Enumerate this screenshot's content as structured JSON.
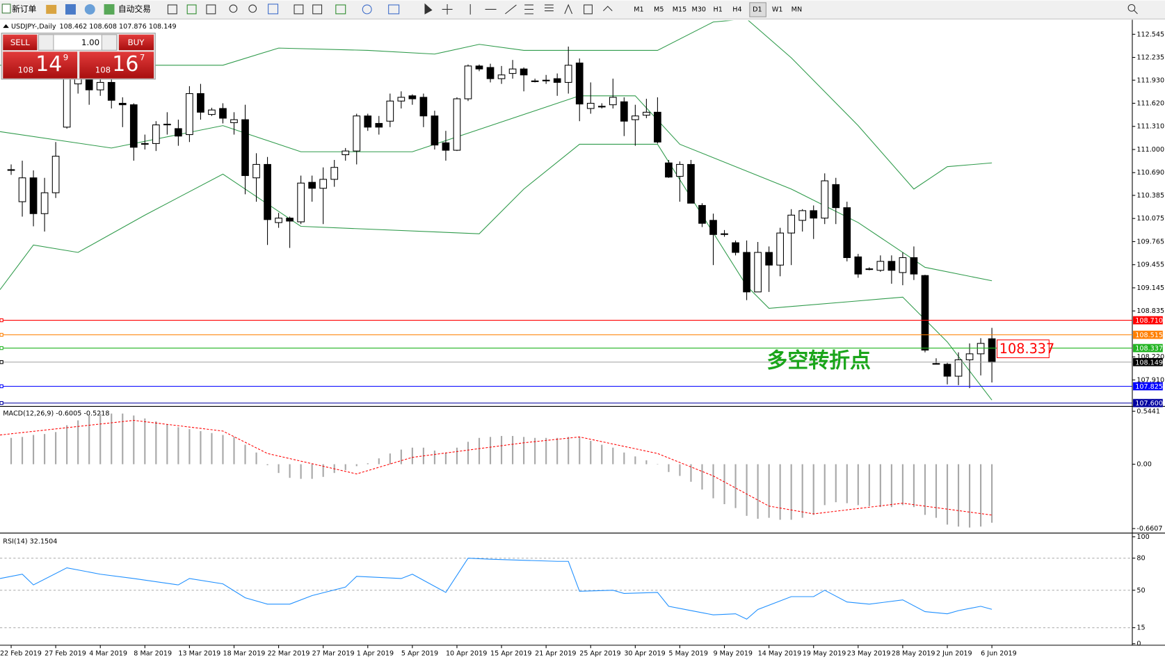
{
  "toolbar": {
    "new_order": "新订单",
    "auto_trading": "自动交易",
    "timeframes": [
      "M1",
      "M5",
      "M15",
      "M30",
      "H1",
      "H4",
      "D1",
      "W1",
      "MN"
    ],
    "active_timeframe": "D1"
  },
  "trade_panel": {
    "sell": "SELL",
    "lots": "1.00",
    "buy": "BUY",
    "sell_big": "108",
    "sell_pips": "14",
    "sell_frac": "9",
    "buy_big": "108",
    "buy_pips": "16",
    "buy_frac": "7"
  },
  "chart_data": [
    {
      "type": "candlestick",
      "title": "USDJPY-,Daily",
      "subtitle": "108.462 108.608 107.876 108.149",
      "date_labels": [
        "22 Feb 2019",
        "27 Feb 2019",
        "4 Mar 2019",
        "8 Mar 2019",
        "13 Mar 2019",
        "18 Mar 2019",
        "22 Mar 2019",
        "27 Mar 2019",
        "1 Apr 2019",
        "5 Apr 2019",
        "10 Apr 2019",
        "15 Apr 2019",
        "21 Apr 2019",
        "25 Apr 2019",
        "30 Apr 2019",
        "5 May 2019",
        "9 May 2019",
        "14 May 2019",
        "19 May 2019",
        "23 May 2019",
        "28 May 2019",
        "2 Jun 2019",
        "6 Jun 2019"
      ],
      "open": [
        110.73,
        110.3,
        110.62,
        110.14,
        110.42,
        111.3,
        111.88,
        111.98,
        111.8,
        111.9,
        111.62,
        111.6,
        111.08,
        111.08,
        111.34,
        111.28,
        111.2,
        111.75,
        111.47,
        111.55,
        111.36,
        111.4,
        110.62,
        110.8,
        110.02,
        110.08,
        110.03,
        110.56,
        110.48,
        110.6,
        110.93,
        110.98,
        111.45,
        111.35,
        111.38,
        111.65,
        111.72,
        111.7,
        111.45,
        111.09,
        110.99,
        111.68,
        112.12,
        112.1,
        111.95,
        112.02,
        112.08,
        111.92,
        111.93,
        111.95,
        111.9,
        112.16,
        111.55,
        111.58,
        111.6,
        111.64,
        111.4,
        111.46,
        111.5,
        110.82,
        110.64,
        110.8,
        110.25,
        110.05,
        109.87,
        109.75,
        109.62,
        109.09,
        109.62,
        109.45,
        109.88,
        110.05,
        110.18,
        110.08,
        110.53,
        110.22,
        109.56,
        109.4,
        109.38,
        109.5,
        109.35,
        109.55,
        109.31,
        108.13,
        108.12,
        107.96,
        108.18,
        108.26,
        108.462
      ],
      "high": [
        110.8,
        110.85,
        110.72,
        110.62,
        111.1,
        112.2,
        112.0,
        112.05,
        111.98,
        111.95,
        111.7,
        111.62,
        111.2,
        111.38,
        111.5,
        111.4,
        111.85,
        111.88,
        111.56,
        111.62,
        111.5,
        111.6,
        110.95,
        110.9,
        110.15,
        110.1,
        110.65,
        110.65,
        110.76,
        110.86,
        111.02,
        111.48,
        111.48,
        111.45,
        111.75,
        111.78,
        111.74,
        111.75,
        111.52,
        111.25,
        111.7,
        112.14,
        112.14,
        112.15,
        112.12,
        112.2,
        112.1,
        111.95,
        112.0,
        112.02,
        112.38,
        112.22,
        111.9,
        111.62,
        111.95,
        111.7,
        111.6,
        111.68,
        111.7,
        110.86,
        110.84,
        110.86,
        110.28,
        110.14,
        109.92,
        109.78,
        109.78,
        109.76,
        109.7,
        109.95,
        110.2,
        110.2,
        110.25,
        110.68,
        110.62,
        110.3,
        109.6,
        109.42,
        109.58,
        109.58,
        109.62,
        109.7,
        109.32,
        108.2,
        108.14,
        108.28,
        108.4,
        108.47,
        108.608
      ],
      "low": [
        110.66,
        110.1,
        109.97,
        109.9,
        110.35,
        111.28,
        111.75,
        111.6,
        111.72,
        111.55,
        111.3,
        110.85,
        111.0,
        110.98,
        111.2,
        111.05,
        111.1,
        111.4,
        111.45,
        111.35,
        111.2,
        110.4,
        110.3,
        109.72,
        109.95,
        109.68,
        110.0,
        110.3,
        110.0,
        110.5,
        110.85,
        110.8,
        111.25,
        111.2,
        111.3,
        111.55,
        111.6,
        111.3,
        111.0,
        110.85,
        110.98,
        111.65,
        112.05,
        111.9,
        111.88,
        111.95,
        111.78,
        111.9,
        111.88,
        111.72,
        111.75,
        111.38,
        111.48,
        111.55,
        111.55,
        111.18,
        111.05,
        111.42,
        111.08,
        110.62,
        110.3,
        110.28,
        109.96,
        109.45,
        109.83,
        109.58,
        108.98,
        109.09,
        109.09,
        109.3,
        109.45,
        109.9,
        109.8,
        110.0,
        110.0,
        109.5,
        109.28,
        109.38,
        109.36,
        109.2,
        109.18,
        109.25,
        108.28,
        108.12,
        107.85,
        107.84,
        107.8,
        107.97,
        107.876
      ],
      "close": [
        110.73,
        110.62,
        110.14,
        110.42,
        110.91,
        111.98,
        111.98,
        111.8,
        111.9,
        111.66,
        111.6,
        111.03,
        111.08,
        111.33,
        111.34,
        111.18,
        111.75,
        111.5,
        111.53,
        111.42,
        111.4,
        110.65,
        110.8,
        110.06,
        110.08,
        110.04,
        110.55,
        110.48,
        110.6,
        110.76,
        110.98,
        111.45,
        111.3,
        111.3,
        111.65,
        111.7,
        111.68,
        111.45,
        111.06,
        110.99,
        111.68,
        112.12,
        112.08,
        111.95,
        112.0,
        112.08,
        112.0,
        111.92,
        111.93,
        111.9,
        112.13,
        111.61,
        111.62,
        111.58,
        111.7,
        111.38,
        111.45,
        111.5,
        111.1,
        110.63,
        110.8,
        110.28,
        110.01,
        109.86,
        109.87,
        109.62,
        109.09,
        109.62,
        109.45,
        109.88,
        110.12,
        110.18,
        110.08,
        110.58,
        110.22,
        109.55,
        109.33,
        109.4,
        109.5,
        109.38,
        109.55,
        109.33,
        108.31,
        108.13,
        107.96,
        108.18,
        108.26,
        108.4,
        108.149
      ],
      "up_color": "#ffffff",
      "down_color": "#000000",
      "bands": [
        {
          "x": [
            -1,
            19,
            24,
            32,
            38,
            42,
            46,
            58,
            63,
            66,
            70,
            76,
            81,
            84,
            88
          ],
          "values": [
            112.13,
            112.13,
            112.36,
            112.33,
            112.28,
            112.41,
            112.33,
            112.33,
            112.71,
            112.75,
            112.23,
            111.32,
            110.47,
            110.77,
            110.82
          ]
        },
        {
          "x": [
            -1,
            9,
            19,
            26,
            36,
            42,
            51,
            56,
            60,
            70,
            76,
            82,
            88
          ],
          "values": [
            111.24,
            111.02,
            111.32,
            110.97,
            110.97,
            111.27,
            111.72,
            111.72,
            111.07,
            110.47,
            110.02,
            109.42,
            109.24
          ]
        },
        {
          "x": [
            -1,
            2,
            6,
            12,
            19,
            26,
            42,
            46,
            51,
            58,
            66,
            68,
            76,
            80,
            84,
            88
          ],
          "values": [
            109.12,
            109.72,
            109.62,
            110.12,
            110.67,
            109.97,
            109.87,
            110.47,
            111.07,
            111.07,
            109.17,
            108.87,
            108.97,
            109.02,
            108.42,
            107.64
          ]
        }
      ],
      "band_color": "#2e9a4a",
      "ylim": [
        107.56,
        112.73
      ],
      "yticks": [
        112.545,
        112.235,
        {
          "value": 111.93,
          "label": "111.930"
        },
        {
          "value": 111.62,
          "label": "111.620"
        },
        {
          "value": 111.31,
          "label": "111.310"
        },
        {
          "value": 111,
          "label": "111.000"
        },
        {
          "value": 110.69,
          "label": "110.690"
        },
        110.385,
        110.075,
        109.765,
        109.455,
        109.145,
        108.835,
        {
          "value": 108.22,
          "label": "108.220"
        },
        {
          "value": 107.91,
          "label": "107.910"
        }
      ],
      "levels": [
        {
          "value": 108.71,
          "label": "108.710",
          "color": "#ff0000"
        },
        {
          "value": 108.515,
          "label": "108.515",
          "color": "#ff7f00"
        },
        {
          "value": 108.337,
          "label": "108.337",
          "color": "#22b422"
        },
        {
          "value": 108.149,
          "label": "108.149",
          "color": "#000000"
        },
        {
          "value": 107.825,
          "label": "107.825",
          "color": "#0000ff"
        },
        {
          "value": 107.6,
          "label": "107.600",
          "color": "#0000a0"
        }
      ],
      "annotations": [
        {
          "text": "多空转折点",
          "color": "#1aa51a"
        },
        {
          "text": "108.337",
          "color": "#ff0000"
        }
      ]
    },
    {
      "type": "bar",
      "title": "MACD(12,26,9) -0.6005 -0.5218",
      "color": "#a8a8a8",
      "values": [
        0.27,
        0.28,
        0.3,
        0.31,
        0.33,
        0.4,
        0.45,
        0.5,
        0.52,
        0.52,
        0.52,
        0.5,
        0.47,
        0.44,
        0.41,
        0.38,
        0.36,
        0.34,
        0.32,
        0.3,
        0.28,
        0.2,
        0.12,
        -0.01,
        -0.09,
        -0.14,
        -0.15,
        -0.15,
        -0.13,
        -0.09,
        -0.06,
        -0.02,
        0.01,
        0.06,
        0.11,
        0.15,
        0.17,
        0.17,
        0.14,
        0.12,
        0.17,
        0.23,
        0.27,
        0.28,
        0.29,
        0.29,
        0.28,
        0.27,
        0.27,
        0.27,
        0.28,
        0.28,
        0.24,
        0.2,
        0.17,
        0.12,
        0.08,
        0.04,
        0.0,
        -0.08,
        -0.12,
        -0.18,
        -0.26,
        -0.35,
        -0.41,
        -0.45,
        -0.53,
        -0.56,
        -0.55,
        -0.57,
        -0.57,
        -0.55,
        -0.52,
        -0.42,
        -0.39,
        -0.4,
        -0.42,
        -0.43,
        -0.44,
        -0.44,
        -0.42,
        -0.44,
        -0.52,
        -0.55,
        -0.62,
        -0.64,
        -0.65,
        -0.64,
        -0.6005
      ],
      "signal": {
        "x": [
          -1,
          11,
          19,
          23,
          31,
          36,
          46,
          51,
          58,
          63,
          68,
          72,
          80,
          88
        ],
        "values": [
          0.3,
          0.45,
          0.34,
          0.11,
          -0.1,
          0.07,
          0.22,
          0.28,
          0.11,
          -0.12,
          -0.43,
          -0.51,
          -0.4,
          -0.5218
        ],
        "color": "#ff0000"
      },
      "ylim": [
        -0.699,
        0.582
      ],
      "yticks": [
        0.5441,
        {
          "value": 0,
          "label": "0.00"
        },
        -0.6607
      ]
    },
    {
      "type": "line",
      "title": "RSI(14) 32.1504",
      "color": "#1e8fff",
      "x": [
        -1,
        1,
        2,
        5,
        8,
        11,
        15,
        16,
        19,
        21,
        23,
        25,
        27,
        30,
        31,
        35,
        36,
        39,
        41,
        43,
        49,
        50,
        51,
        54,
        55,
        58,
        59,
        61,
        63,
        65,
        66,
        67,
        70,
        72,
        73,
        75,
        77,
        80,
        82,
        84,
        85,
        87,
        88
      ],
      "values": [
        61,
        65,
        55,
        71,
        65,
        61,
        55,
        61,
        56,
        43,
        37,
        37,
        45,
        53,
        63,
        61,
        65,
        48,
        80,
        79,
        77,
        77,
        49,
        50,
        47,
        48,
        35,
        31,
        27,
        28,
        23,
        32,
        44,
        44,
        50,
        39,
        37,
        41,
        30,
        28,
        31,
        35,
        32.1504
      ],
      "ylim": [
        0,
        100
      ],
      "yticks": [
        100,
        80,
        50,
        15,
        0
      ]
    }
  ]
}
